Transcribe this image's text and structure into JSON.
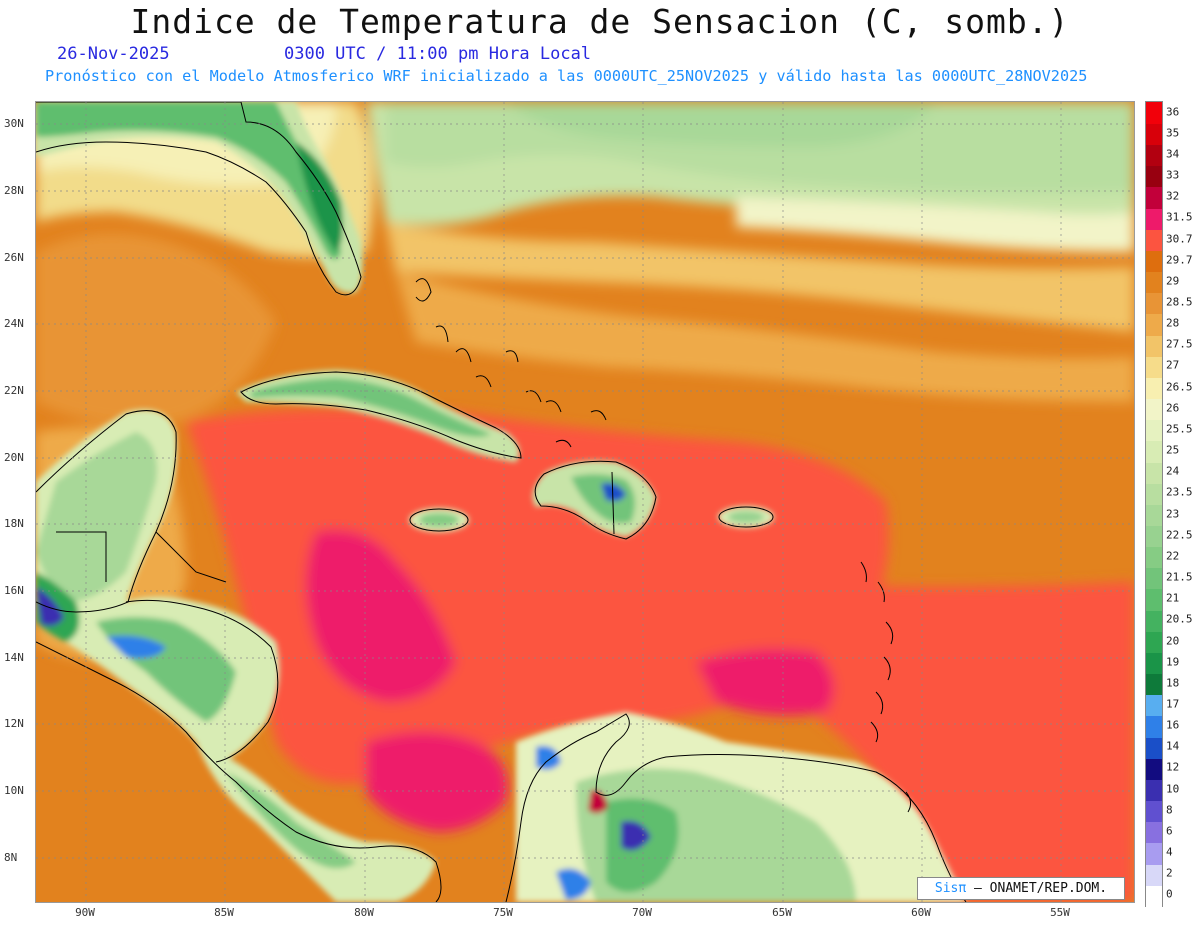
{
  "header": {
    "title": "Indice de Temperatura de Sensacion (C, somb.)",
    "date": "26-Nov-2025",
    "time": "0300 UTC / 11:00 pm Hora Local",
    "model_note": "Pronóstico con el Modelo Atmosferico WRF inicializado a las 0000UTC_25NOV2025 y válido hasta las  0000UTC_28NOV2025"
  },
  "map": {
    "lat_labels": [
      "30N",
      "28N",
      "26N",
      "24N",
      "22N",
      "20N",
      "18N",
      "16N",
      "14N",
      "12N",
      "10N",
      "8N"
    ],
    "lon_labels": [
      "90W",
      "85W",
      "80W",
      "75W",
      "70W",
      "65W",
      "60W",
      "55W"
    ],
    "lat_range": [
      6.8,
      30.7
    ],
    "lon_range": [
      -91.8,
      -52.6
    ]
  },
  "colorbar": {
    "levels": [
      "0",
      "2",
      "4",
      "6",
      "8",
      "10",
      "12",
      "14",
      "16",
      "17",
      "18",
      "19",
      "20",
      "20.5",
      "21",
      "21.5",
      "22",
      "22.5",
      "23",
      "23.5",
      "24",
      "25",
      "25.5",
      "26",
      "26.5",
      "27",
      "27.5",
      "28",
      "28.5",
      "29",
      "29.7",
      "30.7",
      "31.5",
      "32",
      "33",
      "34",
      "35",
      "36"
    ],
    "colors": [
      "#ffffff",
      "#d8d8f8",
      "#a89cf0",
      "#8870e0",
      "#6050d0",
      "#3a2fb0",
      "#120c80",
      "#1a4fc8",
      "#2f80e8",
      "#58aef0",
      "#0e7a3a",
      "#1a9448",
      "#2ea652",
      "#44b260",
      "#5ebe6e",
      "#72c47a",
      "#86cc84",
      "#98d290",
      "#a8d898",
      "#b8dea0",
      "#c8e4a8",
      "#d8ecb4",
      "#e6f2c0",
      "#f2f4c8",
      "#f8efb0",
      "#f6dc8a",
      "#f2c468",
      "#eeaa4a",
      "#e89436",
      "#e2821e",
      "#de6e0e",
      "#fc5440",
      "#ee1a6a",
      "#c2003a",
      "#980010",
      "#b20010",
      "#d8000a",
      "#f2000a"
    ]
  },
  "credit": {
    "sis": "Sisπ",
    "org": " – ONAMET/REP.DOM."
  }
}
